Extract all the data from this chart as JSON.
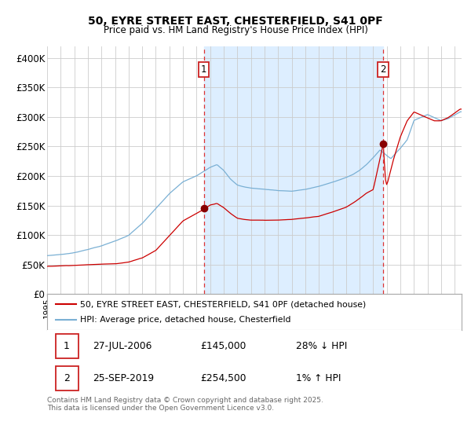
{
  "title1": "50, EYRE STREET EAST, CHESTERFIELD, S41 0PF",
  "title2": "Price paid vs. HM Land Registry's House Price Index (HPI)",
  "legend_label1": "50, EYRE STREET EAST, CHESTERFIELD, S41 0PF (detached house)",
  "legend_label2": "HPI: Average price, detached house, Chesterfield",
  "annotation1_label": "1",
  "annotation1_date": "27-JUL-2006",
  "annotation1_price": "£145,000",
  "annotation1_hpi": "28% ↓ HPI",
  "annotation2_label": "2",
  "annotation2_date": "25-SEP-2019",
  "annotation2_price": "£254,500",
  "annotation2_hpi": "1% ↑ HPI",
  "footer": "Contains HM Land Registry data © Crown copyright and database right 2025.\nThis data is licensed under the Open Government Licence v3.0.",
  "line1_color": "#cc0000",
  "line2_color": "#7ab0d4",
  "shade_color": "#ddeeff",
  "marker_color": "#880000",
  "annotation_box_color": "#cc2222",
  "dashed_line_color": "#dd3333",
  "grid_color": "#cccccc",
  "bg_color": "#ffffff",
  "ylim": [
    0,
    420000
  ],
  "yticks": [
    0,
    50000,
    100000,
    150000,
    200000,
    250000,
    300000,
    350000,
    400000
  ],
  "ytick_labels": [
    "£0",
    "£50K",
    "£100K",
    "£150K",
    "£200K",
    "£250K",
    "£300K",
    "£350K",
    "£400K"
  ],
  "sale1_year": 2006.57,
  "sale1_value": 145000,
  "sale2_year": 2019.73,
  "sale2_value": 254500,
  "hpi_kx": [
    1995,
    1996,
    1997,
    1998,
    1999,
    2000,
    2001,
    2002,
    2003,
    2004,
    2005,
    2006,
    2007.0,
    2007.5,
    2008,
    2008.5,
    2009,
    2009.5,
    2010,
    2011,
    2012,
    2013,
    2014,
    2015,
    2016,
    2017,
    2017.5,
    2018,
    2018.5,
    2019,
    2019.5,
    2020,
    2020.3,
    2021,
    2021.5,
    2022,
    2022.5,
    2023,
    2023.5,
    2024,
    2024.5,
    2025.4
  ],
  "hpi_ky": [
    65000,
    67000,
    70000,
    76000,
    82000,
    90000,
    100000,
    120000,
    145000,
    170000,
    190000,
    200000,
    215000,
    220000,
    210000,
    195000,
    185000,
    182000,
    180000,
    178000,
    176000,
    175000,
    178000,
    183000,
    190000,
    198000,
    203000,
    210000,
    220000,
    232000,
    245000,
    235000,
    230000,
    248000,
    262000,
    295000,
    300000,
    305000,
    300000,
    295000,
    298000,
    310000
  ],
  "prop_kx": [
    1995,
    1996,
    1997,
    1998,
    1999,
    2000,
    2001,
    2002,
    2003,
    2004,
    2005,
    2006,
    2006.57,
    2007,
    2007.5,
    2008,
    2008.5,
    2009,
    2009.5,
    2010,
    2011,
    2012,
    2013,
    2014,
    2015,
    2016,
    2017,
    2017.5,
    2018,
    2018.5,
    2019.0,
    2019.73,
    2019.9,
    2020,
    2020.5,
    2021,
    2021.5,
    2022,
    2022.5,
    2023,
    2023.5,
    2024,
    2024.5,
    2025.4
  ],
  "prop_ky": [
    47000,
    48000,
    49000,
    50000,
    51000,
    52000,
    55000,
    62000,
    75000,
    100000,
    125000,
    138000,
    145000,
    152000,
    155000,
    148000,
    138000,
    130000,
    128000,
    127000,
    127000,
    127000,
    128000,
    130000,
    133000,
    140000,
    148000,
    155000,
    163000,
    172000,
    178000,
    254500,
    195000,
    185000,
    230000,
    268000,
    295000,
    310000,
    305000,
    300000,
    295000,
    295000,
    300000,
    315000
  ]
}
